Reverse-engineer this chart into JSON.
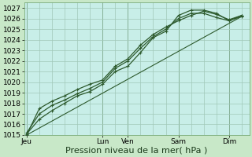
{
  "background_color": "#c8e8c8",
  "plot_bg_color": "#c8eee8",
  "grid_color": "#a0c8b8",
  "grid_color_minor": "#c0d8c0",
  "line_color": "#2d5a2d",
  "ylim": [
    1015,
    1027.5
  ],
  "yticks": [
    1015,
    1016,
    1017,
    1018,
    1019,
    1020,
    1021,
    1022,
    1023,
    1024,
    1025,
    1026,
    1027
  ],
  "xlabel": "Pression niveau de la mer( hPa )",
  "xlabel_fontsize": 8,
  "tick_fontsize": 6.5,
  "xtick_labels": [
    "Jeu",
    "Lun",
    "Ven",
    "Sam",
    "Dim"
  ],
  "xtick_positions": [
    0,
    3,
    4,
    6,
    8
  ],
  "xlim": [
    -0.1,
    8.8
  ],
  "series1_x": [
    0,
    0.5,
    1.0,
    1.5,
    2.0,
    2.5,
    3.0,
    3.5,
    4.0,
    4.5,
    5.0,
    5.5,
    6.0,
    6.5,
    7.0,
    7.5,
    8.0,
    8.5
  ],
  "series1_y": [
    1015.1,
    1016.5,
    1017.3,
    1018.0,
    1018.7,
    1019.1,
    1019.8,
    1021.0,
    1021.5,
    1022.8,
    1024.2,
    1024.8,
    1026.3,
    1026.8,
    1026.8,
    1026.5,
    1025.8,
    1026.3
  ],
  "series2_x": [
    0,
    0.5,
    1.0,
    1.5,
    2.0,
    2.5,
    3.0,
    3.5,
    4.0,
    4.5,
    5.0,
    5.5,
    6.0,
    6.5,
    7.0,
    7.5,
    8.0,
    8.5
  ],
  "series2_y": [
    1015.2,
    1017.0,
    1017.8,
    1018.3,
    1018.9,
    1019.4,
    1020.0,
    1021.3,
    1022.0,
    1023.2,
    1024.3,
    1025.0,
    1026.0,
    1026.5,
    1026.5,
    1026.1,
    1025.8,
    1026.2
  ],
  "series3_x": [
    0,
    0.5,
    1.0,
    1.5,
    2.0,
    2.5,
    3.0,
    3.5,
    4.0,
    4.5,
    5.0,
    5.5,
    6.0,
    6.5,
    7.0,
    7.5,
    8.0,
    8.5
  ],
  "series3_y": [
    1015.0,
    1017.5,
    1018.2,
    1018.7,
    1019.3,
    1019.8,
    1020.2,
    1021.5,
    1022.2,
    1023.5,
    1024.5,
    1025.2,
    1025.8,
    1026.3,
    1026.7,
    1026.4,
    1025.9,
    1026.3
  ],
  "series4_x": [
    0,
    8.5
  ],
  "series4_y": [
    1015.0,
    1026.2
  ]
}
